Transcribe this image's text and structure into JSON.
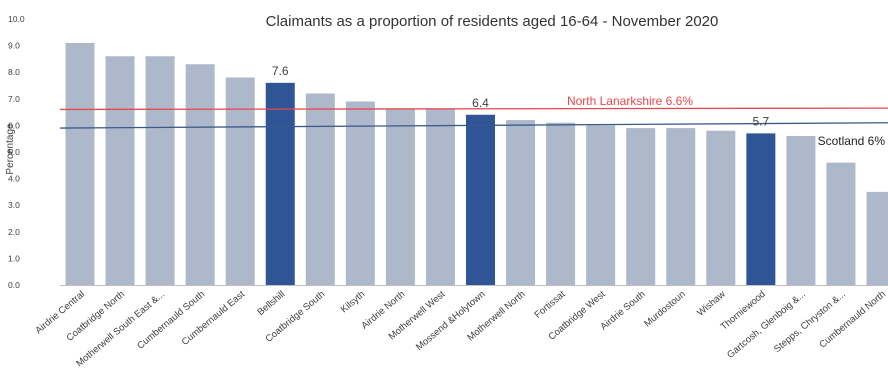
{
  "chart_data": {
    "type": "bar",
    "title": "Claimants as a proportion of residents aged 16-64 - November 2020",
    "xlabel": "",
    "ylabel": "Percentage",
    "ylim": [
      0,
      10
    ],
    "yticks": [
      "0.0",
      "1.0",
      "2.0",
      "3.0",
      "4.0",
      "5.0",
      "6.0",
      "7.0",
      "8.0",
      "9.0",
      "10.0"
    ],
    "grid": false,
    "categories": [
      "Airdrie Central",
      "Coatbridge North",
      "Motherwell South East &...",
      "Cumbernauld South",
      "Cumbernauld East",
      "Bellshill",
      "Coatbridge South",
      "Kilsyth",
      "Airdrie North",
      "Motherwell West",
      "Mossend &Holytown",
      "Motherwell North",
      "Fortissat",
      "Coatbridge West",
      "Airdrie South",
      "Murdostoun",
      "Wishaw",
      "Thorniewood",
      "Gartcosh, Glenboig &...",
      "Stepps, Chryston &...",
      "Cumbernauld North"
    ],
    "values": [
      9.1,
      8.6,
      8.6,
      8.3,
      7.8,
      7.6,
      7.2,
      6.9,
      6.6,
      6.6,
      6.4,
      6.2,
      6.1,
      6.0,
      5.9,
      5.9,
      5.8,
      5.7,
      5.6,
      4.6,
      3.5
    ],
    "highlighted": [
      "Bellshill",
      "Mossend &Holytown",
      "Thorniewood"
    ],
    "data_labels": [
      {
        "category": "Bellshill",
        "text": "7.6"
      },
      {
        "category": "Mossend &Holytown",
        "text": "6.4"
      },
      {
        "category": "Thorniewood",
        "text": "5.7"
      }
    ],
    "reference_lines": [
      {
        "label": "North Lanarkshire 6.6%",
        "start": 6.6,
        "end": 6.65,
        "color": "#e8474c"
      },
      {
        "label": "Scotland 6%",
        "start": 5.9,
        "end": 6.1,
        "color": "#3b5a8c"
      }
    ],
    "colors": {
      "bar": "#adb9ca",
      "bar_highlight": "#2f5597",
      "axis": "#bfbfbf"
    }
  }
}
